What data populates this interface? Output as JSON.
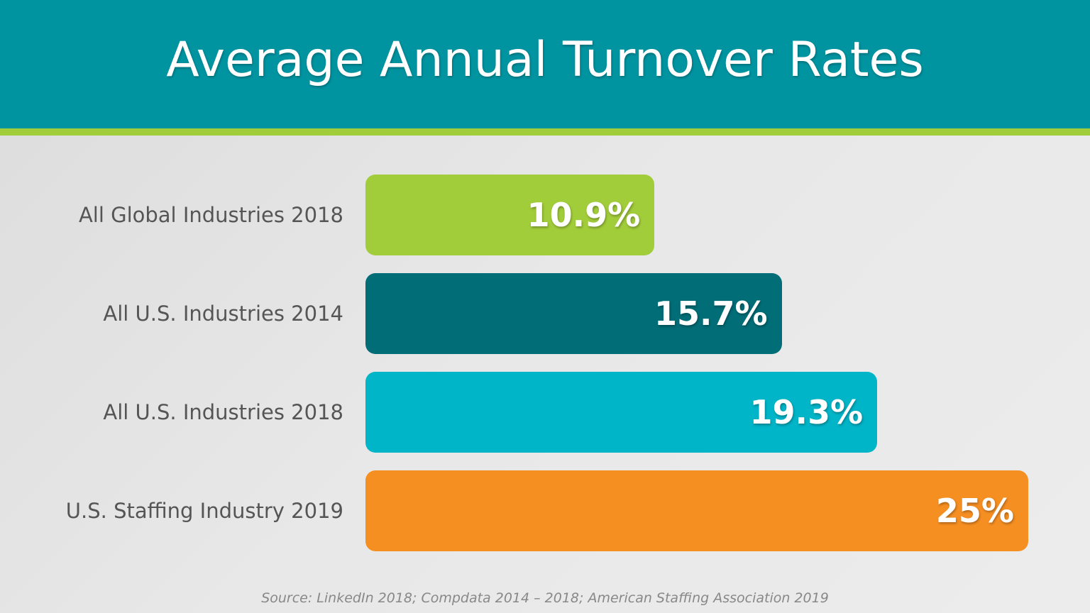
{
  "chart_data": {
    "type": "bar",
    "orientation": "horizontal",
    "title": "Average Annual Turnover Rates",
    "categories": [
      "All Global Industries 2018",
      "All U.S. Industries 2014",
      "All U.S. Industries 2018",
      "U.S. Staffing Industry 2019"
    ],
    "values": [
      10.9,
      15.7,
      19.3,
      25
    ],
    "value_labels": [
      "10.9%",
      "15.7%",
      "19.3%",
      "25%"
    ],
    "colors": [
      "#a2cd3a",
      "#006d77",
      "#00b5c8",
      "#f68f22"
    ],
    "xlim": [
      0,
      25
    ],
    "grid": false,
    "source": "Source: LinkedIn 2018; Compdata 2014 – 2018; American Staffing Association 2019"
  },
  "theme": {
    "header_color": "#0094a1",
    "stripe_color": "#a2cd3a"
  }
}
